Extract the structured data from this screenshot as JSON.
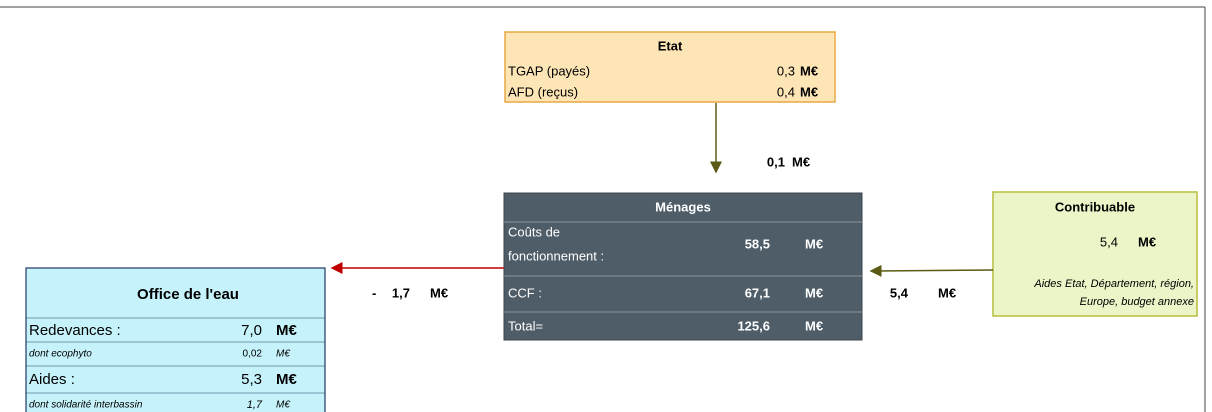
{
  "etat": {
    "title": "Etat",
    "rows": [
      {
        "label": "TGAP (payés)",
        "value": "0,3",
        "unit": "M€"
      },
      {
        "label": "AFD (reçus)",
        "value": "0,4",
        "unit": "M€"
      }
    ]
  },
  "flow_etat_menages": {
    "value": "0,1",
    "unit": "M€"
  },
  "menages": {
    "title": "Ménages",
    "rows": [
      {
        "label": [
          "Coûts de",
          "fonctionnement :"
        ],
        "value": "58,5",
        "unit": "M€"
      },
      {
        "label": "CCF :",
        "value": "67,1",
        "unit": "M€"
      },
      {
        "label": "Total=",
        "value": "125,6",
        "unit": "M€"
      }
    ]
  },
  "contribuable": {
    "title": "Contribuable",
    "value": "5,4",
    "unit": "M€",
    "note": [
      "Aides Etat, Département, région,",
      "Europe, budget annexe"
    ]
  },
  "flow_contribuable_menages": {
    "value": "5,4",
    "unit": "M€"
  },
  "flow_menages_office": {
    "sign": "-",
    "value": "1,7",
    "unit": "M€"
  },
  "office": {
    "title": "Office de l'eau",
    "rows": [
      {
        "label": "Redevances :",
        "value": "7,0",
        "unit": "M€"
      },
      {
        "label": "dont ecophyto",
        "value": "0,02",
        "unit": "M€"
      },
      {
        "label": "Aides :",
        "value": "5,3",
        "unit": "M€"
      },
      {
        "label": "dont solidarité interbassin",
        "value": "1,7",
        "unit": "M€"
      }
    ]
  }
}
